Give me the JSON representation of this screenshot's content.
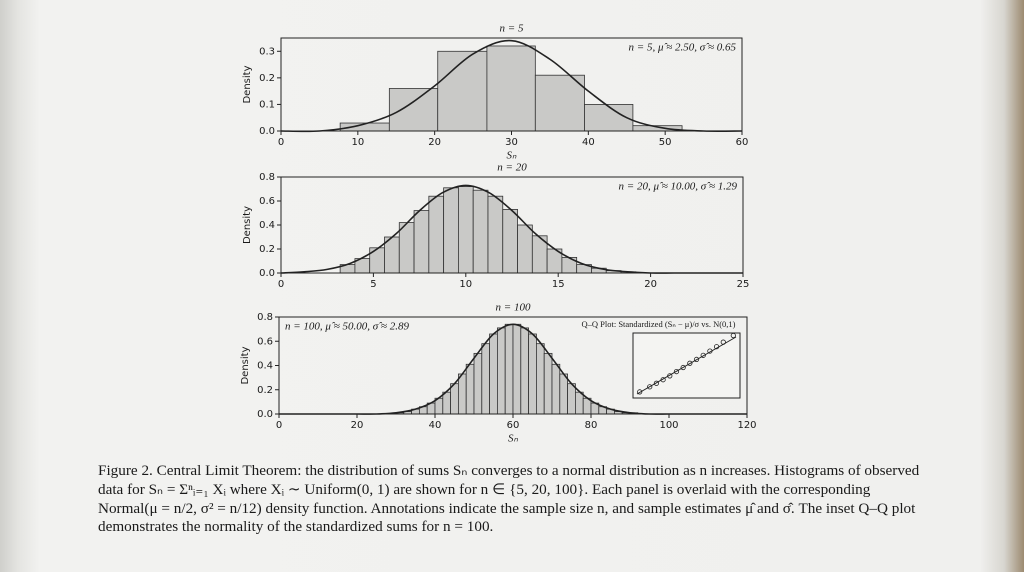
{
  "chart_data": [
    {
      "type": "histogram",
      "title": "n = 5",
      "xlabel": "Sₙ",
      "ylabel": "Density",
      "annotation": "n = 5, μ̂ ≈ 2.50, σ̂ ≈ 0.65",
      "annotation_loc": "upper right",
      "color": "#c9c9c7",
      "curve_color": "#222222",
      "bins": [
        7.7,
        14.1,
        20.4,
        26.8,
        33.1,
        39.5,
        45.8,
        52.2
      ],
      "values": [
        0.03,
        0.16,
        0.3,
        0.32,
        0.21,
        0.1,
        0.02
      ],
      "curve": {
        "x": [
          0,
          5,
          10,
          15,
          20,
          25,
          30,
          35,
          40,
          45,
          50,
          55,
          60
        ],
        "y": [
          0.0,
          0.0,
          0.02,
          0.07,
          0.17,
          0.29,
          0.34,
          0.27,
          0.15,
          0.05,
          0.01,
          0.0,
          0.0
        ]
      },
      "xlim": [
        0,
        60
      ],
      "xticks": [
        0,
        10,
        20,
        30,
        40,
        50,
        60
      ],
      "ylim": [
        0,
        0.35
      ],
      "yticks": [
        {
          "value": 0,
          "label": "0.0"
        },
        0.1,
        0.2,
        0.3
      ]
    },
    {
      "type": "histogram",
      "title": "n = 20",
      "ylabel": "Density",
      "annotation": "n = 20, μ̂ ≈ 10.00, σ̂ ≈ 1.29",
      "annotation_loc": "upper right",
      "color": "#c9c9c7",
      "curve_color": "#222222",
      "bins": [
        3.2,
        4.0,
        4.8,
        5.6,
        6.4,
        7.2,
        8.0,
        8.8,
        9.6,
        10.4,
        11.2,
        12.0,
        12.8,
        13.6,
        14.4,
        15.2,
        16.0,
        16.8,
        17.6,
        18.4,
        19.2
      ],
      "values": [
        0.07,
        0.12,
        0.21,
        0.3,
        0.42,
        0.52,
        0.64,
        0.71,
        0.72,
        0.69,
        0.64,
        0.53,
        0.4,
        0.31,
        0.2,
        0.13,
        0.07,
        0.04,
        0.02,
        0.01
      ],
      "curve": {
        "x": [
          0,
          1.25,
          2.5,
          3.75,
          5,
          6.25,
          7.5,
          8.75,
          10,
          11.25,
          12.5,
          13.75,
          15,
          16.25,
          17.5,
          18.75,
          20,
          21.25,
          22.5,
          23.75,
          25
        ],
        "y": [
          0.0,
          0.01,
          0.03,
          0.08,
          0.18,
          0.33,
          0.52,
          0.67,
          0.73,
          0.67,
          0.52,
          0.33,
          0.18,
          0.08,
          0.03,
          0.01,
          0.0,
          0.0,
          0.0,
          0.0,
          0.0
        ]
      },
      "xlim": [
        0,
        25
      ],
      "xticks": [
        0,
        5,
        10,
        15,
        20,
        25
      ],
      "ylim": [
        0,
        0.8
      ],
      "yticks": [
        {
          "value": 0,
          "label": "0.0"
        },
        0.2,
        0.4,
        0.6,
        0.8
      ]
    },
    {
      "type": "histogram",
      "title": "n = 100",
      "xlabel": "Sₙ",
      "ylabel": "Density",
      "annotation": "n = 100, μ̂ ≈ 50.00, σ̂ ≈ 2.89",
      "annotation_loc": "upper left",
      "color": "#c9c9c7",
      "curve_color": "#222222",
      "bins": [
        30,
        32,
        34,
        36,
        38,
        40,
        42,
        44,
        46,
        48,
        50,
        52,
        54,
        56,
        58,
        60,
        62,
        64,
        66,
        68,
        70,
        72,
        74,
        76,
        78,
        80,
        82,
        84,
        86,
        88,
        90,
        92,
        94
      ],
      "values": [
        0.01,
        0.02,
        0.04,
        0.06,
        0.09,
        0.13,
        0.18,
        0.25,
        0.33,
        0.41,
        0.5,
        0.58,
        0.66,
        0.71,
        0.74,
        0.74,
        0.71,
        0.66,
        0.58,
        0.5,
        0.41,
        0.33,
        0.25,
        0.18,
        0.13,
        0.09,
        0.06,
        0.04,
        0.02,
        0.01,
        0.01,
        0.0
      ],
      "curve": {
        "x": [
          0,
          5,
          10,
          15,
          20,
          25,
          30,
          35,
          40,
          45,
          50,
          55,
          60,
          65,
          70,
          75,
          80,
          85,
          90,
          95,
          100,
          105,
          110,
          115,
          120
        ],
        "y": [
          0.0,
          0.0,
          0.0,
          0.0,
          0.0,
          0.0,
          0.01,
          0.04,
          0.11,
          0.25,
          0.46,
          0.66,
          0.74,
          0.66,
          0.46,
          0.25,
          0.11,
          0.04,
          0.01,
          0.0,
          0.0,
          0.0,
          0.0,
          0.0,
          0.0
        ]
      },
      "xlim": [
        0,
        120
      ],
      "xticks": [
        0,
        20,
        40,
        60,
        80,
        100,
        120
      ],
      "ylim": [
        0,
        0.8
      ],
      "yticks": [
        {
          "value": 0,
          "label": "0.0"
        },
        0.2,
        0.4,
        0.6,
        0.8
      ],
      "inset": {
        "type": "scatter",
        "title": "Q–Q Plot: Standardized (Sₙ − μ)/σ vs. N(0,1)",
        "x": [
          -2.8,
          -2.2,
          -1.8,
          -1.4,
          -1.0,
          -0.6,
          -0.2,
          0.2,
          0.6,
          1.0,
          1.4,
          1.8,
          2.2,
          2.8
        ],
        "y": [
          -2.6,
          -2.1,
          -1.75,
          -1.4,
          -1.02,
          -0.6,
          -0.2,
          0.22,
          0.6,
          1.0,
          1.42,
          1.85,
          2.3,
          2.95
        ],
        "xlim": [
          -3.2,
          3.2
        ],
        "ylim": [
          -3.2,
          3.2
        ]
      }
    }
  ],
  "caption": "Figure 2. Central Limit Theorem: the distribution of sums Sₙ converges to a normal distribution as n increases. Histograms of observed data for Sₙ = Σⁿᵢ₌₁ Xᵢ where Xᵢ ∼ Uniform(0, 1) are shown for n ∈ {5, 20, 100}. Each panel is overlaid with the corresponding Normal(μ = n/2, σ² = n/12) density function. Annotations indicate the sample size n, and sample estimates μ̂ and σ̂. The inset Q–Q plot demonstrates the normality of the standardized sums for n = 100."
}
